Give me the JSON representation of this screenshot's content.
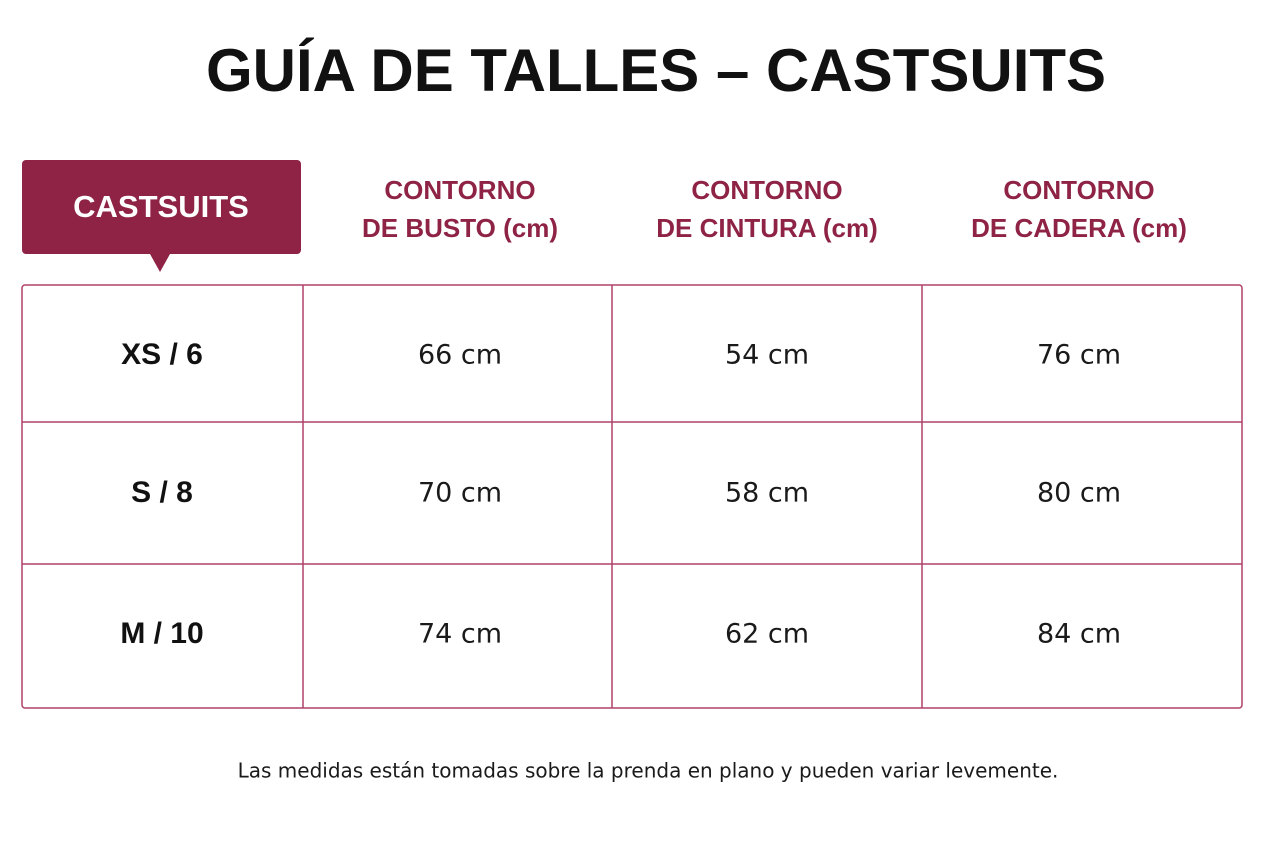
{
  "header": {
    "title": "GUÍA DE TALLES – CASTSUITS"
  },
  "table": {
    "corner": "CASTSUITS",
    "columns": [
      [
        "CONTORNO",
        "DE BUSTO (cm)"
      ],
      [
        "CONTORNO",
        "DE CINTURA (cm)"
      ],
      [
        "CONTORNO",
        "DE CADERA (cm)"
      ]
    ],
    "rows": [
      [
        "XS / 6",
        "66 cm",
        "54 cm",
        "76 cm"
      ],
      [
        "S / 8",
        "70 cm",
        "58 cm",
        "80 cm"
      ],
      [
        "M / 10",
        "74 cm",
        "62 cm",
        "84 cm"
      ]
    ]
  },
  "footnote": "Las medidas están tomadas sobre la prenda en plano y pueden variar levemente."
}
